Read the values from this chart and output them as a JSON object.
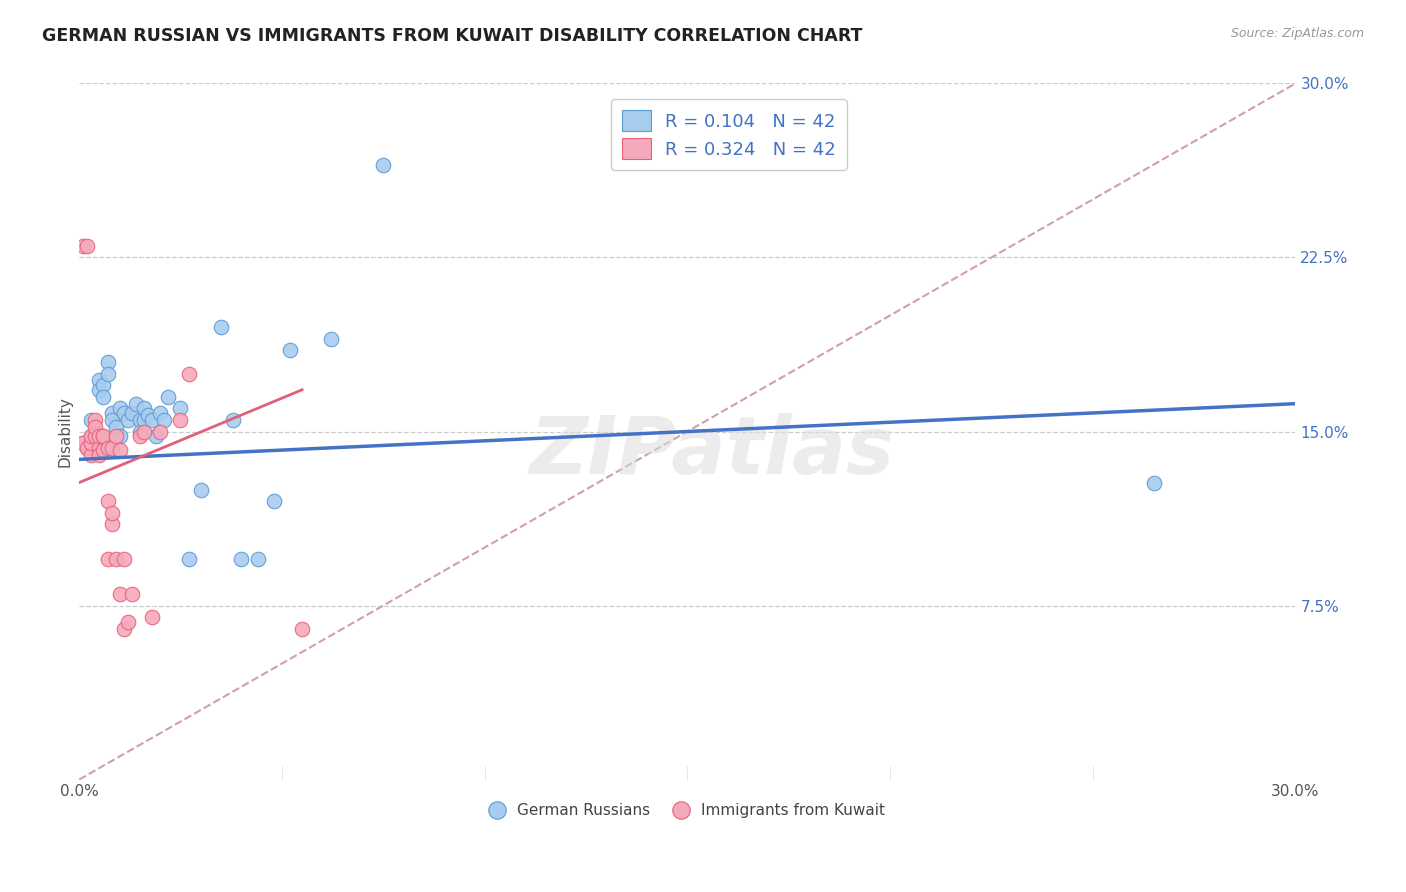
{
  "title": "GERMAN RUSSIAN VS IMMIGRANTS FROM KUWAIT DISABILITY CORRELATION CHART",
  "source": "Source: ZipAtlas.com",
  "ylabel": "Disability",
  "xlim": [
    0.0,
    0.3
  ],
  "ylim": [
    0.0,
    0.3
  ],
  "yticks": [
    0.075,
    0.15,
    0.225,
    0.3
  ],
  "ytick_labels": [
    "7.5%",
    "15.0%",
    "22.5%",
    "30.0%"
  ],
  "xtick_ends": [
    "0.0%",
    "30.0%"
  ],
  "blue_R": 0.104,
  "pink_R": 0.324,
  "N": 42,
  "blue_color": "#A8CCEE",
  "pink_color": "#F5AABB",
  "blue_edge_color": "#5A9AD5",
  "pink_edge_color": "#E8607A",
  "blue_line_color": "#4472C4",
  "pink_line_color": "#E0607A",
  "diag_line_color": "#D0A0A8",
  "grid_color": "#CCCCCC",
  "watermark": "ZIPatlas",
  "blue_scatter_x": [
    0.001,
    0.002,
    0.003,
    0.003,
    0.004,
    0.005,
    0.005,
    0.006,
    0.006,
    0.007,
    0.007,
    0.008,
    0.008,
    0.009,
    0.01,
    0.01,
    0.011,
    0.012,
    0.013,
    0.014,
    0.015,
    0.015,
    0.016,
    0.016,
    0.017,
    0.018,
    0.019,
    0.02,
    0.021,
    0.022,
    0.025,
    0.027,
    0.03,
    0.035,
    0.038,
    0.04,
    0.044,
    0.048,
    0.052,
    0.062,
    0.075,
    0.265
  ],
  "blue_scatter_y": [
    0.145,
    0.143,
    0.155,
    0.148,
    0.15,
    0.172,
    0.168,
    0.17,
    0.165,
    0.18,
    0.175,
    0.158,
    0.155,
    0.152,
    0.16,
    0.148,
    0.158,
    0.155,
    0.158,
    0.162,
    0.155,
    0.15,
    0.155,
    0.16,
    0.157,
    0.155,
    0.148,
    0.158,
    0.155,
    0.165,
    0.16,
    0.095,
    0.125,
    0.195,
    0.155,
    0.095,
    0.095,
    0.12,
    0.185,
    0.19,
    0.265,
    0.128
  ],
  "pink_scatter_x": [
    0.001,
    0.001,
    0.002,
    0.002,
    0.003,
    0.003,
    0.003,
    0.004,
    0.004,
    0.004,
    0.005,
    0.005,
    0.005,
    0.006,
    0.006,
    0.006,
    0.007,
    0.007,
    0.007,
    0.008,
    0.008,
    0.008,
    0.009,
    0.009,
    0.01,
    0.01,
    0.011,
    0.011,
    0.012,
    0.013,
    0.015,
    0.016,
    0.018,
    0.02,
    0.025,
    0.027,
    0.055
  ],
  "pink_scatter_y": [
    0.145,
    0.23,
    0.143,
    0.23,
    0.14,
    0.145,
    0.148,
    0.148,
    0.155,
    0.152,
    0.143,
    0.148,
    0.14,
    0.142,
    0.148,
    0.148,
    0.143,
    0.12,
    0.095,
    0.11,
    0.143,
    0.115,
    0.095,
    0.148,
    0.08,
    0.142,
    0.095,
    0.065,
    0.068,
    0.08,
    0.148,
    0.15,
    0.07,
    0.15,
    0.155,
    0.175,
    0.065
  ],
  "blue_line_x": [
    0.0,
    0.3
  ],
  "blue_line_y": [
    0.138,
    0.162
  ],
  "pink_line_x": [
    0.0,
    0.055
  ],
  "pink_line_y": [
    0.128,
    0.168
  ]
}
